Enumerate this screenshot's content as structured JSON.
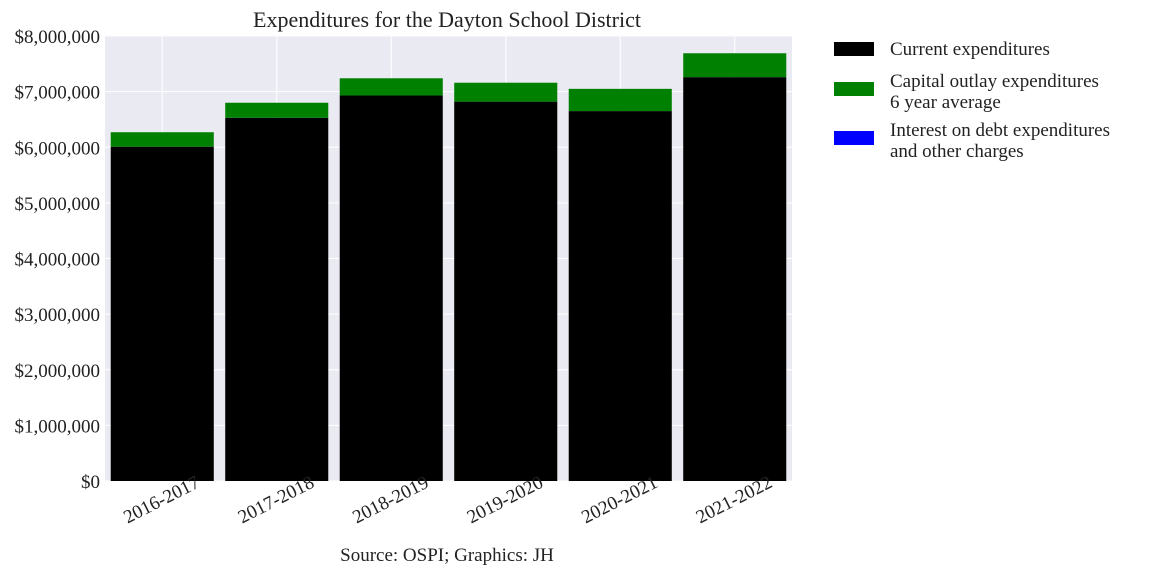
{
  "chart_data": {
    "type": "bar",
    "stacked": true,
    "title": "Expenditures for the Dayton School District",
    "source": "Source: OSPI; Graphics: JH",
    "categories": [
      "2016-2017",
      "2017-2018",
      "2018-2019",
      "2019-2020",
      "2020-2021",
      "2021-2022"
    ],
    "series": [
      {
        "name": "Current expenditures",
        "color": "#000000",
        "values": [
          6010000,
          6530000,
          6930000,
          6820000,
          6650000,
          7260000
        ]
      },
      {
        "name": "Capital outlay expenditures 6 year average",
        "color": "#008000",
        "values": [
          260000,
          270000,
          310000,
          340000,
          400000,
          430000
        ]
      },
      {
        "name": "Interest on debt expenditures and other charges",
        "color": "#0000ff",
        "values": [
          0,
          0,
          0,
          0,
          0,
          0
        ]
      }
    ],
    "legend_lines": [
      [
        "Current expenditures"
      ],
      [
        "Capital outlay expenditures",
        "6 year average"
      ],
      [
        "Interest on debt expenditures",
        "and other charges"
      ]
    ],
    "ylim": [
      0,
      8000000
    ],
    "yticks": [
      0,
      1000000,
      2000000,
      3000000,
      4000000,
      5000000,
      6000000,
      7000000,
      8000000
    ],
    "ytick_labels": [
      "$0",
      "$1,000,000",
      "$2,000,000",
      "$3,000,000",
      "$4,000,000",
      "$5,000,000",
      "$6,000,000",
      "$7,000,000",
      "$8,000,000"
    ],
    "grid": true,
    "legend_position": "outside-right",
    "plot_background": "#eaeaf2"
  }
}
